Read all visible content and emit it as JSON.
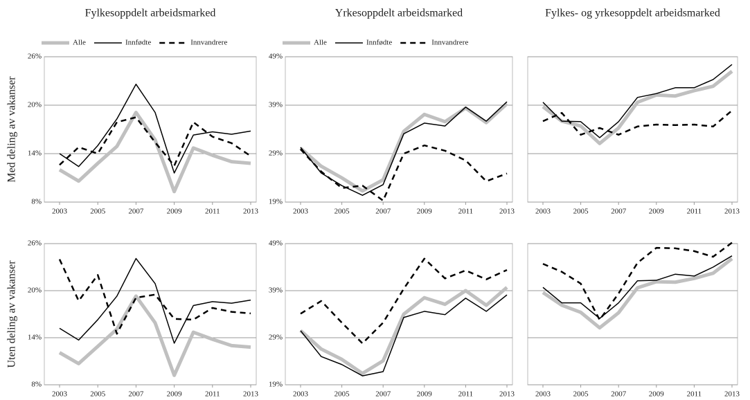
{
  "chart_data": [
    {
      "type": "line",
      "title": "Fylkesoppdelt arbeidsmarked",
      "ylabel": "Med deling av vakanser",
      "legend": "above",
      "x": [
        2003,
        2004,
        2005,
        2006,
        2007,
        2008,
        2009,
        2010,
        2011,
        2012,
        2013
      ],
      "xlim": [
        2003,
        2013
      ],
      "xticks": [
        2003,
        2005,
        2007,
        2009,
        2011,
        2013
      ],
      "ylim": [
        8,
        26
      ],
      "yticks": [
        {
          "value": 8,
          "label": "8%"
        },
        {
          "value": 14,
          "label": "14%"
        },
        {
          "value": 20,
          "label": "20%"
        },
        {
          "value": 26,
          "label": "26%"
        }
      ],
      "grid": true,
      "series": [
        {
          "name": "Alle",
          "color": "#c0c0c0",
          "line_width": 5,
          "line_style": "solid",
          "values": [
            12.0,
            10.6,
            12.8,
            14.9,
            19.1,
            15.7,
            9.3,
            14.7,
            13.8,
            13.0,
            12.8
          ]
        },
        {
          "name": "Innfødte",
          "color": "#000000",
          "line_width": 1.5,
          "line_style": "solid",
          "values": [
            14.0,
            12.4,
            15.0,
            18.3,
            22.6,
            19.1,
            11.6,
            16.3,
            16.7,
            16.4,
            16.8
          ]
        },
        {
          "name": "Innvandrere",
          "color": "#000000",
          "line_width": 2.5,
          "line_style": "dashed",
          "values": [
            12.6,
            14.8,
            14.0,
            17.9,
            18.5,
            15.4,
            12.5,
            17.9,
            16.1,
            15.3,
            13.7
          ]
        }
      ]
    },
    {
      "type": "line",
      "title": "Yrkesoppdelt arbeidsmarked",
      "legend": "above",
      "x": [
        2003,
        2004,
        2005,
        2006,
        2007,
        2008,
        2009,
        2010,
        2011,
        2012,
        2013
      ],
      "xlim": [
        2003,
        2013
      ],
      "xticks": [
        2003,
        2005,
        2007,
        2009,
        2011,
        2013
      ],
      "ylim": [
        19,
        49
      ],
      "yticks": [
        {
          "value": 19,
          "label": "19%"
        },
        {
          "value": 29,
          "label": "29%"
        },
        {
          "value": 39,
          "label": "39%"
        },
        {
          "value": 49,
          "label": "49%"
        }
      ],
      "grid": true,
      "series": [
        {
          "name": "Alle",
          "color": "#c0c0c0",
          "line_width": 5,
          "line_style": "solid",
          "values": [
            30.1,
            26.4,
            24.0,
            21.3,
            23.6,
            33.6,
            37.1,
            35.6,
            38.4,
            35.4,
            39.3
          ]
        },
        {
          "name": "Innfødte",
          "color": "#000000",
          "line_width": 1.5,
          "line_style": "solid",
          "values": [
            30.3,
            25.0,
            22.4,
            20.4,
            22.6,
            33.1,
            35.3,
            34.7,
            38.6,
            35.7,
            39.7
          ]
        },
        {
          "name": "Innvandrere",
          "color": "#000000",
          "line_width": 2.5,
          "line_style": "dashed",
          "values": [
            29.9,
            25.3,
            21.9,
            22.4,
            19.3,
            29.0,
            30.7,
            29.6,
            27.6,
            23.3,
            24.9
          ]
        }
      ]
    },
    {
      "type": "line",
      "title": "Fylkes- og yrkesoppdelt arbeidsmarked",
      "x": [
        2003,
        2004,
        2005,
        2006,
        2007,
        2008,
        2009,
        2010,
        2011,
        2012,
        2013
      ],
      "xlim": [
        2003,
        2013
      ],
      "xticks": [
        2003,
        2005,
        2007,
        2009,
        2011,
        2013
      ],
      "ylim": [
        19,
        49
      ],
      "yticks": [
        19,
        29,
        39,
        49
      ],
      "ytick_labels": false,
      "grid": true,
      "series": [
        {
          "color": "#c0c0c0",
          "line_width": 5,
          "line_style": "solid",
          "values": [
            38.7,
            35.7,
            34.7,
            31.1,
            34.3,
            39.6,
            41.1,
            40.9,
            42.0,
            42.9,
            46.0
          ]
        },
        {
          "color": "#000000",
          "line_width": 1.5,
          "line_style": "solid",
          "values": [
            39.6,
            35.7,
            35.6,
            32.3,
            35.6,
            40.6,
            41.4,
            42.6,
            42.6,
            44.3,
            47.4
          ]
        },
        {
          "color": "#000000",
          "line_width": 2.5,
          "line_style": "dashed",
          "values": [
            35.7,
            37.4,
            32.9,
            34.3,
            32.9,
            34.6,
            35.0,
            34.9,
            35.0,
            34.6,
            37.9
          ]
        }
      ]
    },
    {
      "type": "line",
      "ylabel": "Uten deling av vakanser",
      "x": [
        2003,
        2004,
        2005,
        2006,
        2007,
        2008,
        2009,
        2010,
        2011,
        2012,
        2013
      ],
      "xlim": [
        2003,
        2013
      ],
      "xticks": [
        2003,
        2005,
        2007,
        2009,
        2011,
        2013
      ],
      "ylim": [
        8,
        26
      ],
      "yticks": [
        {
          "value": 8,
          "label": "8%"
        },
        {
          "value": 14,
          "label": "14%"
        },
        {
          "value": 20,
          "label": "20%"
        },
        {
          "value": 26,
          "label": "26%"
        }
      ],
      "grid": true,
      "series": [
        {
          "color": "#c0c0c0",
          "line_width": 5,
          "line_style": "solid",
          "values": [
            12.1,
            10.7,
            12.9,
            15.1,
            19.3,
            15.9,
            9.2,
            14.7,
            13.8,
            13.0,
            12.8
          ]
        },
        {
          "color": "#000000",
          "line_width": 1.5,
          "line_style": "solid",
          "values": [
            15.2,
            13.7,
            16.3,
            19.3,
            24.1,
            20.9,
            13.3,
            18.1,
            18.6,
            18.4,
            18.8
          ]
        },
        {
          "color": "#000000",
          "line_width": 2.5,
          "line_style": "dashed",
          "values": [
            24.0,
            18.7,
            22.0,
            14.5,
            19.1,
            19.5,
            16.4,
            16.3,
            17.8,
            17.3,
            17.1
          ]
        }
      ]
    },
    {
      "type": "line",
      "x": [
        2003,
        2004,
        2005,
        2006,
        2007,
        2008,
        2009,
        2010,
        2011,
        2012,
        2013
      ],
      "xlim": [
        2003,
        2013
      ],
      "xticks": [
        2003,
        2005,
        2007,
        2009,
        2011,
        2013
      ],
      "ylim": [
        19,
        49
      ],
      "yticks": [
        {
          "value": 19,
          "label": "19%"
        },
        {
          "value": 29,
          "label": "29%"
        },
        {
          "value": 39,
          "label": "39%"
        },
        {
          "value": 49,
          "label": "49%"
        }
      ],
      "grid": true,
      "series": [
        {
          "color": "#c0c0c0",
          "line_width": 5,
          "line_style": "solid",
          "values": [
            30.5,
            26.6,
            24.4,
            21.4,
            24.1,
            34.0,
            37.5,
            36.1,
            39.0,
            35.9,
            39.7
          ]
        },
        {
          "color": "#000000",
          "line_width": 1.5,
          "line_style": "solid",
          "values": [
            30.5,
            25.0,
            23.3,
            20.9,
            21.8,
            33.3,
            34.6,
            33.9,
            37.4,
            34.6,
            38.1
          ]
        },
        {
          "color": "#000000",
          "line_width": 2.5,
          "line_style": "dashed",
          "values": [
            34.1,
            36.8,
            32.2,
            27.8,
            32.2,
            39.4,
            45.8,
            41.6,
            43.3,
            41.4,
            43.4
          ]
        }
      ]
    },
    {
      "type": "line",
      "x": [
        2003,
        2004,
        2005,
        2006,
        2007,
        2008,
        2009,
        2010,
        2011,
        2012,
        2013
      ],
      "xlim": [
        2003,
        2013
      ],
      "xticks": [
        2003,
        2005,
        2007,
        2009,
        2011,
        2013
      ],
      "ylim": [
        19,
        49
      ],
      "yticks": [
        19,
        29,
        39,
        49
      ],
      "ytick_labels": false,
      "grid": true,
      "series": [
        {
          "color": "#c0c0c0",
          "line_width": 5,
          "line_style": "solid",
          "values": [
            38.6,
            35.9,
            34.4,
            31.1,
            34.3,
            39.6,
            40.9,
            40.8,
            41.6,
            42.7,
            45.8
          ]
        },
        {
          "color": "#000000",
          "line_width": 1.5,
          "line_style": "solid",
          "values": [
            39.7,
            36.4,
            36.4,
            33.1,
            36.4,
            41.1,
            41.2,
            42.5,
            42.1,
            44.0,
            46.4
          ]
        },
        {
          "color": "#000000",
          "line_width": 2.5,
          "line_style": "dashed",
          "values": [
            44.7,
            43.0,
            40.5,
            32.8,
            38.4,
            44.9,
            48.1,
            48.0,
            47.4,
            46.2,
            49.2
          ]
        }
      ]
    }
  ]
}
